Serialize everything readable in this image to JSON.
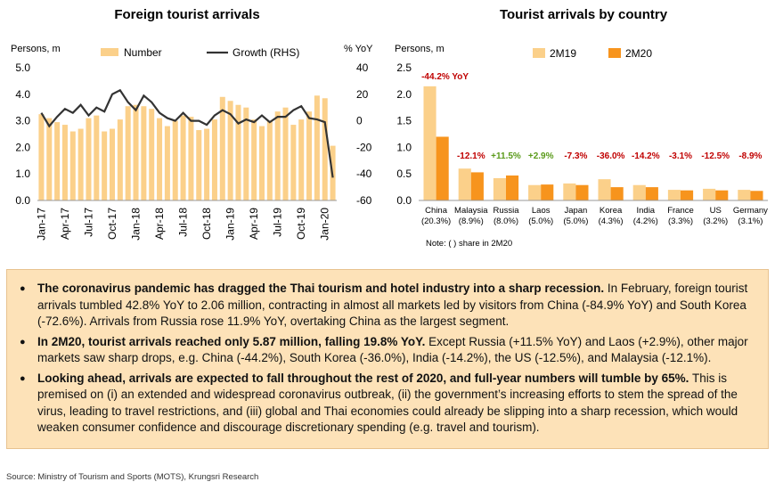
{
  "colors": {
    "bar_light": "#fbd08a",
    "bar_dark": "#f7941d",
    "line": "#333333",
    "neg": "#c00000",
    "pos": "#5a9a1a",
    "summary_bg": "#fde2b8"
  },
  "chart_data": [
    {
      "type": "bar",
      "title": "Foreign tourist arrivals",
      "ylabel": "Persons, m",
      "y2label": "% YoY",
      "ylim": [
        0,
        5
      ],
      "yticks": [
        "0.0",
        "1.0",
        "2.0",
        "3.0",
        "4.0",
        "5.0"
      ],
      "y2lim": [
        -60,
        40
      ],
      "y2ticks": [
        "-60",
        "-40",
        "-20",
        "0",
        "20",
        "40"
      ],
      "x_tick_labels": [
        "Jan-17",
        "Apr-17",
        "Jul-17",
        "Oct-17",
        "Jan-18",
        "Apr-18",
        "Jul-18",
        "Oct-18",
        "Jan-19",
        "Apr-19",
        "Jul-19",
        "Oct-19",
        "Jan-20"
      ],
      "x_tick_every": 3,
      "months": [
        "Jan-17",
        "Feb-17",
        "Mar-17",
        "Apr-17",
        "May-17",
        "Jun-17",
        "Jul-17",
        "Aug-17",
        "Sep-17",
        "Oct-17",
        "Nov-17",
        "Dec-17",
        "Jan-18",
        "Feb-18",
        "Mar-18",
        "Apr-18",
        "May-18",
        "Jun-18",
        "Jul-18",
        "Aug-18",
        "Sep-18",
        "Oct-18",
        "Nov-18",
        "Dec-18",
        "Jan-19",
        "Feb-19",
        "Mar-19",
        "Apr-19",
        "May-19",
        "Jun-19",
        "Jul-19",
        "Aug-19",
        "Sep-19",
        "Oct-19",
        "Nov-19",
        "Dec-19",
        "Jan-20",
        "Feb-20"
      ],
      "series": [
        {
          "name": "Number",
          "kind": "bar",
          "axis": "left",
          "values": [
            3.25,
            3.1,
            2.95,
            2.85,
            2.6,
            2.7,
            3.1,
            3.2,
            2.6,
            2.7,
            3.05,
            3.55,
            3.6,
            3.55,
            3.45,
            3.1,
            2.8,
            3.0,
            3.2,
            3.15,
            2.65,
            2.7,
            3.05,
            3.9,
            3.75,
            3.6,
            3.5,
            3.05,
            2.8,
            3.0,
            3.35,
            3.5,
            2.85,
            3.05,
            3.35,
            3.95,
            3.85,
            2.06
          ]
        },
        {
          "name": "Growth (RHS)",
          "kind": "line",
          "axis": "right",
          "values": [
            6,
            -4,
            3,
            9,
            6,
            12,
            4,
            10,
            7,
            20,
            23,
            14,
            8,
            19,
            14,
            6,
            2,
            0,
            6,
            0,
            0,
            -3,
            4,
            8,
            5,
            -2,
            1,
            -1,
            4,
            -1,
            3,
            3,
            8,
            11,
            2,
            1,
            -1,
            -42.8
          ]
        }
      ],
      "legend": "top"
    },
    {
      "type": "bar",
      "title": "Tourist arrivals by country",
      "ylabel": "Persons, m",
      "ylim": [
        0,
        2.5
      ],
      "yticks": [
        "0.0",
        "0.5",
        "1.0",
        "1.5",
        "2.0",
        "2.5"
      ],
      "categories": [
        "China",
        "Malaysia",
        "Russia",
        "Laos",
        "Japan",
        "Korea",
        "India",
        "France",
        "US",
        "Germany"
      ],
      "shares": [
        "(20.3%)",
        "(8.9%)",
        "(8.0%)",
        "(5.0%)",
        "(5.0%)",
        "(4.3%)",
        "(4.2%)",
        "(3.3%)",
        "(3.2%)",
        "(3.1%)"
      ],
      "growth_labels": [
        "-44.2% YoY",
        "-12.1%",
        "+11.5%",
        "+2.9%",
        "-7.3%",
        "-36.0%",
        "-14.2%",
        "-3.1%",
        "-12.5%",
        "-8.9%"
      ],
      "growth_positive": [
        false,
        false,
        true,
        true,
        false,
        false,
        false,
        false,
        false,
        false
      ],
      "series": [
        {
          "name": "2M19",
          "values": [
            2.15,
            0.6,
            0.42,
            0.29,
            0.32,
            0.4,
            0.29,
            0.2,
            0.22,
            0.2
          ]
        },
        {
          "name": "2M20",
          "values": [
            1.2,
            0.53,
            0.47,
            0.3,
            0.29,
            0.25,
            0.25,
            0.19,
            0.19,
            0.18
          ]
        }
      ],
      "note": "Note: (   ) share in 2M20",
      "legend": "top"
    }
  ],
  "summary": [
    {
      "bold": "The coronavirus pandemic has dragged the Thai tourism and hotel industry into a sharp recession.",
      "text": " In February, foreign tourist arrivals tumbled 42.8% YoY to 2.06 million, contracting in almost all markets led by visitors from China (-84.9% YoY) and South Korea (-72.6%). Arrivals from Russia rose 11.9% YoY, overtaking China as the largest segment."
    },
    {
      "bold": "In 2M20, tourist arrivals reached only 5.87 million, falling 19.8% YoY.",
      "text": " Except Russia (+11.5% YoY) and Laos (+2.9%), other major markets saw sharp drops, e.g. China (-44.2%), South Korea (-36.0%), India (-14.2%), the US (-12.5%), and Malaysia (-12.1%)."
    },
    {
      "bold": "Looking ahead, arrivals are expected to fall throughout the rest of 2020, and full-year numbers will tumble by 65%.",
      "text": " This is premised on (i) an extended and widespread coronavirus outbreak, (ii) the government’s increasing efforts to stem the spread of the virus, leading to travel restrictions, and (iii) global and Thai economies could already be slipping into a sharp recession, which would weaken consumer confidence and discourage discretionary spending (e.g. travel and tourism)."
    }
  ],
  "source": "Source: Ministry of Tourism and Sports (MOTS), Krungsri Research"
}
